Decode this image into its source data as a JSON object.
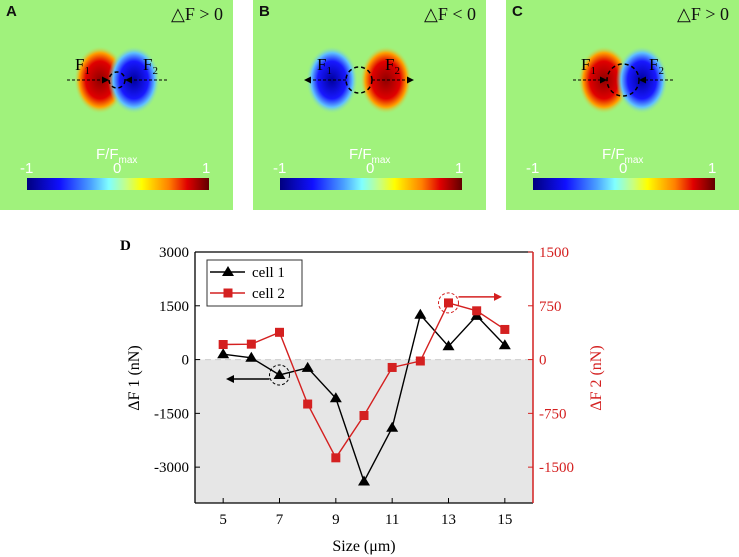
{
  "panels": [
    {
      "label": "A",
      "condition": "△F > 0",
      "f1": "F",
      "f1_sub": "1",
      "f2": "F",
      "f2_sub": "2",
      "colorbar_title": "F/F",
      "colorbar_title_sub": "max",
      "ticks": [
        "-1",
        "0",
        "1"
      ]
    },
    {
      "label": "B",
      "condition": "△F < 0",
      "f1": "F",
      "f1_sub": "1",
      "f2": "F",
      "f2_sub": "2",
      "colorbar_title": "F/F",
      "colorbar_title_sub": "max",
      "ticks": [
        "-1",
        "0",
        "1"
      ]
    },
    {
      "label": "C",
      "condition": "△F > 0",
      "f1": "F",
      "f1_sub": "1",
      "f2": "F",
      "f2_sub": "2",
      "colorbar_title": "F/F",
      "colorbar_title_sub": "max",
      "ticks": [
        "-1",
        "0",
        "1"
      ]
    }
  ],
  "chart_data": {
    "type": "line",
    "panel_label": "D",
    "xlabel": "Size (μm)",
    "ylabel_left": "ΔF 1 (nN)",
    "ylabel_right": "ΔF 2 (nN)",
    "xlim": [
      4,
      16
    ],
    "ylim_left": [
      -4000,
      3000
    ],
    "ylim_right": [
      -2000,
      1500
    ],
    "xticks": [
      5,
      7,
      9,
      11,
      13,
      15
    ],
    "yticks_left": [
      3000,
      1500,
      0,
      -1500,
      -3000
    ],
    "yticks_right": [
      1500,
      750,
      0,
      -750,
      -1500
    ],
    "x": [
      5,
      6,
      7,
      8,
      9,
      10,
      11,
      12,
      13,
      14,
      15
    ],
    "series": [
      {
        "name": "cell 1",
        "axis": "left",
        "color": "#000000",
        "marker": "triangle",
        "values": [
          150,
          50,
          -430,
          -230,
          -1080,
          -3400,
          -1900,
          1250,
          370,
          1220,
          400
        ]
      },
      {
        "name": "cell 2",
        "axis": "right",
        "color": "#d42020",
        "marker": "square",
        "values": [
          210,
          215,
          380,
          -620,
          -1370,
          -780,
          -110,
          -20,
          790,
          680,
          420
        ]
      }
    ],
    "legend": "top-left",
    "shaded_region": "below zero (left axis)",
    "highlight": [
      {
        "series": "cell 1",
        "x": 7,
        "arrow": "left"
      },
      {
        "series": "cell 2",
        "x": 13,
        "arrow": "right"
      }
    ]
  }
}
